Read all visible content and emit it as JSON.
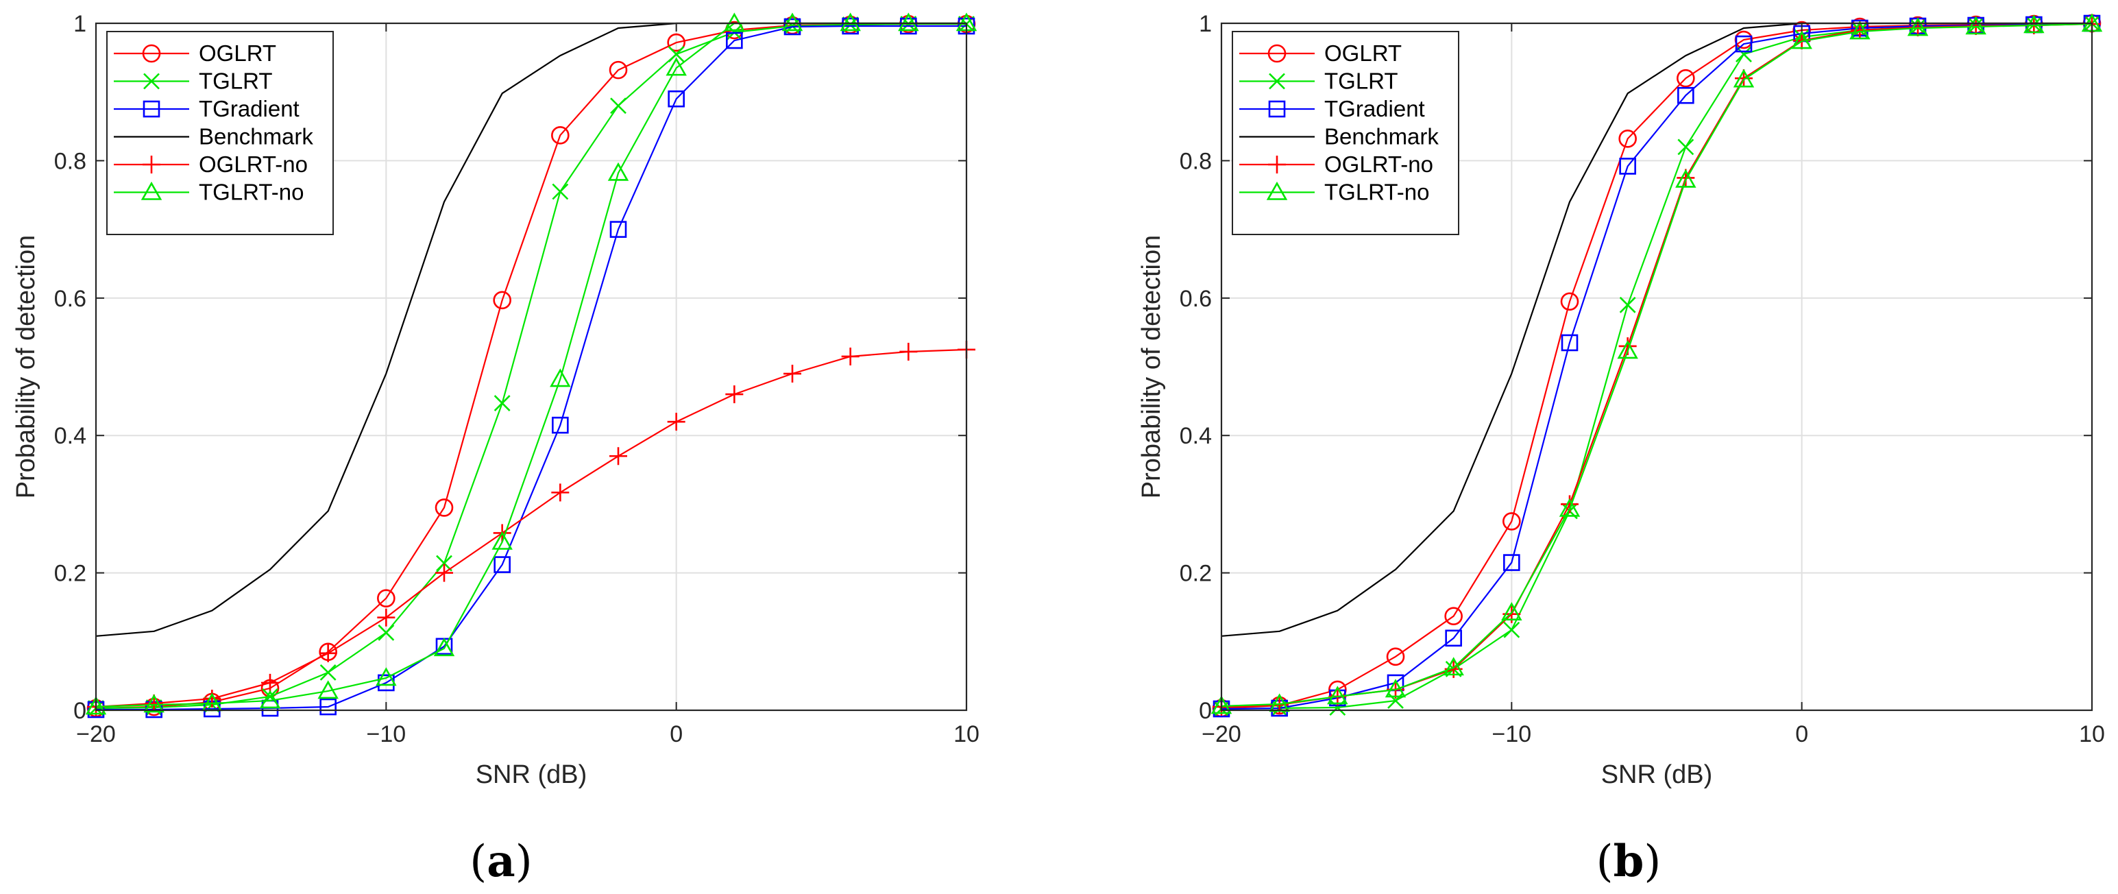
{
  "colors": {
    "OGLRT": "#ff0000",
    "TGLRT": "#00e600",
    "TGradient": "#0000ff",
    "Benchmark": "#000000",
    "OGLRT-no": "#ff0000",
    "TGLRT-no": "#00e600",
    "grid": "#e0e0e0",
    "axis": "#262626"
  },
  "panels": [
    {
      "open": "(",
      "letter": "a",
      "close": ")"
    },
    {
      "open": "(",
      "letter": "b",
      "close": ")"
    }
  ],
  "chart_data": [
    {
      "type": "line",
      "title": "",
      "xlabel": "SNR (dB)",
      "ylabel": "Probability of detection",
      "xlim": [
        -20,
        10
      ],
      "ylim": [
        0,
        1
      ],
      "grid": true,
      "legend_position": "top-left",
      "xticks": [
        -20,
        -10,
        0,
        10
      ],
      "xtick_labels": [
        "−20",
        "−10",
        "0",
        "10"
      ],
      "yticks": [
        0,
        0.2,
        0.4,
        0.6,
        0.8,
        1
      ],
      "ytick_labels": [
        "0",
        "0.2",
        "0.4",
        "0.6",
        "0.8",
        "1"
      ],
      "x": [
        -20,
        -18,
        -16,
        -14,
        -12,
        -10,
        -8,
        -6,
        -4,
        -2,
        0,
        2,
        4,
        6,
        8,
        10
      ],
      "series": [
        {
          "name": "OGLRT",
          "marker": "circle",
          "values": [
            0.003,
            0.005,
            0.012,
            0.032,
            0.085,
            0.163,
            0.295,
            0.597,
            0.837,
            0.932,
            0.972,
            0.99,
            0.997,
            0.998,
            0.999,
            0.999
          ]
        },
        {
          "name": "TGLRT",
          "marker": "x",
          "values": [
            0.003,
            0.004,
            0.008,
            0.02,
            0.055,
            0.113,
            0.214,
            0.447,
            0.755,
            0.88,
            0.955,
            0.987,
            0.996,
            0.998,
            0.999,
            0.999
          ]
        },
        {
          "name": "TGradient",
          "marker": "square",
          "values": [
            0.001,
            0.001,
            0.002,
            0.003,
            0.005,
            0.04,
            0.093,
            0.212,
            0.415,
            0.7,
            0.89,
            0.975,
            0.995,
            0.996,
            0.996,
            0.996
          ]
        },
        {
          "name": "Benchmark",
          "marker": "none",
          "values": [
            0.108,
            0.115,
            0.145,
            0.205,
            0.29,
            0.49,
            0.74,
            0.898,
            0.953,
            0.993,
            1.0,
            1.0,
            1.0,
            1.0,
            1.0,
            1.0
          ]
        },
        {
          "name": "OGLRT-no",
          "marker": "plus",
          "values": [
            0.005,
            0.01,
            0.017,
            0.04,
            0.083,
            0.135,
            0.2,
            0.258,
            0.317,
            0.37,
            0.42,
            0.46,
            0.49,
            0.515,
            0.522,
            0.525
          ]
        },
        {
          "name": "TGLRT-no",
          "marker": "triangle",
          "values": [
            0.005,
            0.008,
            0.01,
            0.014,
            0.028,
            0.047,
            0.09,
            0.245,
            0.482,
            0.782,
            0.935,
            1.0,
            1.0,
            1.0,
            1.0,
            1.0
          ]
        }
      ]
    },
    {
      "type": "line",
      "title": "",
      "xlabel": "SNR (dB)",
      "ylabel": "Probability of detection",
      "xlim": [
        -20,
        10
      ],
      "ylim": [
        0,
        1
      ],
      "grid": true,
      "legend_position": "top-left",
      "xticks": [
        -20,
        -10,
        0,
        10
      ],
      "xtick_labels": [
        "−20",
        "−10",
        "0",
        "10"
      ],
      "yticks": [
        0,
        0.2,
        0.4,
        0.6,
        0.8,
        1
      ],
      "ytick_labels": [
        "0",
        "0.2",
        "0.4",
        "0.6",
        "0.8",
        "1"
      ],
      "x": [
        -20,
        -18,
        -16,
        -14,
        -12,
        -10,
        -8,
        -6,
        -4,
        -2,
        0,
        2,
        4,
        6,
        8,
        10
      ],
      "series": [
        {
          "name": "OGLRT",
          "marker": "circle",
          "values": [
            0.003,
            0.007,
            0.03,
            0.078,
            0.137,
            0.275,
            0.595,
            0.832,
            0.92,
            0.976,
            0.99,
            0.995,
            0.997,
            0.998,
            0.999,
            1.0
          ]
        },
        {
          "name": "TGLRT",
          "marker": "x",
          "values": [
            0.002,
            0.003,
            0.004,
            0.014,
            0.06,
            0.117,
            0.29,
            0.59,
            0.82,
            0.955,
            0.98,
            0.99,
            0.995,
            0.997,
            0.998,
            1.0
          ]
        },
        {
          "name": "TGradient",
          "marker": "square",
          "values": [
            0.002,
            0.003,
            0.018,
            0.04,
            0.105,
            0.215,
            0.535,
            0.792,
            0.895,
            0.97,
            0.985,
            0.993,
            0.996,
            0.997,
            0.998,
            1.0
          ]
        },
        {
          "name": "Benchmark",
          "marker": "none",
          "values": [
            0.108,
            0.115,
            0.145,
            0.205,
            0.29,
            0.49,
            0.74,
            0.898,
            0.953,
            0.993,
            1.0,
            1.0,
            1.0,
            1.0,
            1.0,
            1.0
          ]
        },
        {
          "name": "OGLRT-no",
          "marker": "plus",
          "values": [
            0.005,
            0.008,
            0.02,
            0.03,
            0.06,
            0.14,
            0.3,
            0.53,
            0.775,
            0.92,
            0.975,
            0.99,
            0.994,
            0.996,
            0.997,
            0.999
          ]
        },
        {
          "name": "TGLRT-no",
          "marker": "triangle",
          "values": [
            0.006,
            0.009,
            0.02,
            0.03,
            0.062,
            0.142,
            0.293,
            0.523,
            0.772,
            0.918,
            0.974,
            0.988,
            0.993,
            0.995,
            0.997,
            0.999
          ]
        }
      ]
    }
  ]
}
